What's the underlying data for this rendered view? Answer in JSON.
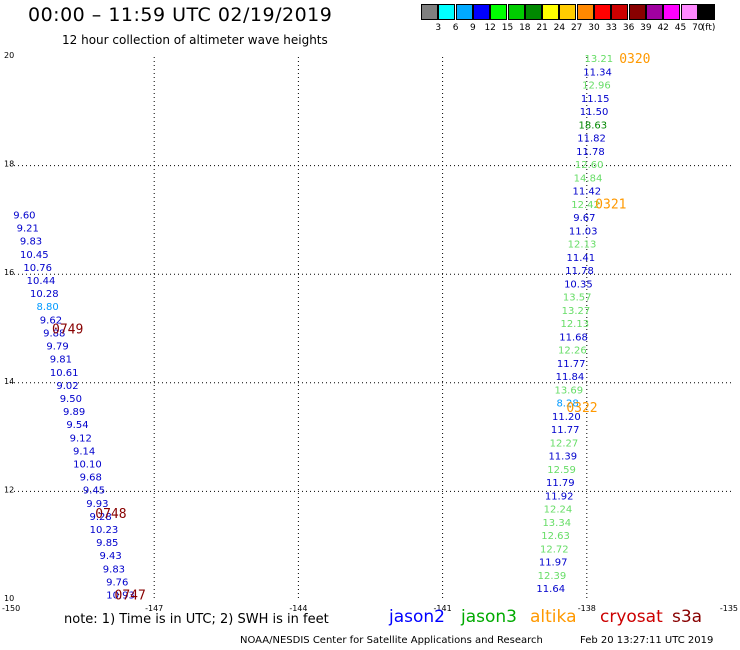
{
  "header": {
    "title": "00:00 – 11:59 UTC 02/19/2019",
    "subtitle": "12 hour collection of altimeter wave heights"
  },
  "legend": {
    "unit": "(ft)",
    "bins": [
      {
        "label": "3",
        "color": "#7f7f7f"
      },
      {
        "label": "6",
        "color": "#00ffff"
      },
      {
        "label": "9",
        "color": "#00aaff"
      },
      {
        "label": "12",
        "color": "#0000ff"
      },
      {
        "label": "15",
        "color": "#00ff00"
      },
      {
        "label": "18",
        "color": "#00cc00"
      },
      {
        "label": "21",
        "color": "#008800"
      },
      {
        "label": "24",
        "color": "#ffff00"
      },
      {
        "label": "27",
        "color": "#ffcc00"
      },
      {
        "label": "30",
        "color": "#ff8800"
      },
      {
        "label": "33",
        "color": "#ff0000"
      },
      {
        "label": "36",
        "color": "#cc0000"
      },
      {
        "label": "39",
        "color": "#880000"
      },
      {
        "label": "42",
        "color": "#a000a0"
      },
      {
        "label": "45",
        "color": "#ff00ff"
      },
      {
        "label": "70",
        "color": "#ff88ff"
      },
      {
        "label": "",
        "color": "#000000"
      }
    ]
  },
  "map": {
    "lon_range": [
      -150,
      -135
    ],
    "lat_range": [
      10,
      20
    ],
    "lon_ticks": [
      "-150",
      "-147",
      "-144",
      "-141",
      "-138",
      "-135"
    ],
    "lat_ticks": [
      "10",
      "12",
      "14",
      "16",
      "18",
      "20"
    ],
    "track_labels": [
      {
        "text": "0320",
        "lon": -137.0,
        "lat": 19.98,
        "color": "#ff9900"
      },
      {
        "text": "0321",
        "lon": -137.5,
        "lat": 17.3,
        "color": "#ff9900"
      },
      {
        "text": "0322",
        "lon": -138.1,
        "lat": 13.55,
        "color": "#ff9900"
      },
      {
        "text": "0749",
        "lon": -148.8,
        "lat": 15.0,
        "color": "#880000"
      },
      {
        "text": "0748",
        "lon": -147.9,
        "lat": 11.6,
        "color": "#880000"
      },
      {
        "text": "0747",
        "lon": -147.5,
        "lat": 10.1,
        "color": "#880000"
      }
    ],
    "tracks": [
      {
        "name": "east-track",
        "start": {
          "lon": -137.75,
          "lat": 19.98
        },
        "end": {
          "lon": -138.75,
          "lat": 10.22
        },
        "values": [
          "13.21",
          "11.34",
          "12.96",
          "11.15",
          "11.50",
          "18.63",
          "11.82",
          "11.78",
          "12.60",
          "14.84",
          "11.42",
          "12.42",
          "9.67",
          "11.03",
          "12.13",
          "11.41",
          "11.78",
          "10.35",
          "13.57",
          "13.27",
          "12.13",
          "11.68",
          "12.26",
          "11.77",
          "11.84",
          "13.69",
          "8.28",
          "11.20",
          "11.77",
          "12.27",
          "11.39",
          "12.59",
          "11.79",
          "11.92",
          "12.24",
          "13.34",
          "12.63",
          "12.72",
          "11.97",
          "12.39",
          "11.64"
        ],
        "colors": [
          "#66dd66",
          "#0000cc",
          "#66dd66",
          "#0000cc",
          "#0000cc",
          "#008800",
          "#0000cc",
          "#0000cc",
          "#66dd66",
          "#66dd66",
          "#0000cc",
          "#66dd66",
          "#0000cc",
          "#0000cc",
          "#66dd66",
          "#0000cc",
          "#0000cc",
          "#0000cc",
          "#66dd66",
          "#66dd66",
          "#66dd66",
          "#0000cc",
          "#66dd66",
          "#0000cc",
          "#0000cc",
          "#66dd66",
          "#0099ff",
          "#0000cc",
          "#0000cc",
          "#66dd66",
          "#0000cc",
          "#66dd66",
          "#0000cc",
          "#0000cc",
          "#66dd66",
          "#66dd66",
          "#66dd66",
          "#66dd66",
          "#0000cc",
          "#66dd66",
          "#0000cc"
        ]
      },
      {
        "name": "west-track",
        "start": {
          "lon": -149.7,
          "lat": 17.1
        },
        "end": {
          "lon": -147.7,
          "lat": 10.1
        },
        "values": [
          "9.60",
          "9.21",
          "9.83",
          "10.45",
          "10.76",
          "10.44",
          "10.28",
          "8.80",
          "9.62",
          "9.88",
          "9.79",
          "9.81",
          "10.61",
          "9.02",
          "9.50",
          "9.89",
          "9.54",
          "9.12",
          "9.14",
          "10.10",
          "9.68",
          "9.45",
          "9.93",
          "9.28",
          "10.23",
          "9.85",
          "9.43",
          "9.83",
          "9.76",
          "10.93"
        ],
        "colors": [
          "#0000cc",
          "#0000cc",
          "#0000cc",
          "#0000cc",
          "#0000cc",
          "#0000cc",
          "#0000cc",
          "#0099ff",
          "#0000cc",
          "#0000cc",
          "#0000cc",
          "#0000cc",
          "#0000cc",
          "#0000cc",
          "#0000cc",
          "#0000cc",
          "#0000cc",
          "#0000cc",
          "#0000cc",
          "#0000cc",
          "#0000cc",
          "#0000cc",
          "#0000cc",
          "#0000cc",
          "#0000cc",
          "#0000cc",
          "#0000cc",
          "#0000cc",
          "#0000cc",
          "#0000cc"
        ]
      }
    ]
  },
  "footer": {
    "note": "note: 1) Time is in UTC; 2) SWH is in feet",
    "satellites": [
      {
        "name": "jason2",
        "color": "#0000ff"
      },
      {
        "name": "jason3",
        "color": "#00aa00"
      },
      {
        "name": "altika",
        "color": "#ff9900"
      },
      {
        "name": "cryosat",
        "color": "#cc0000"
      },
      {
        "name": "s3a",
        "color": "#880000"
      }
    ],
    "credit": "NOAA/NESDIS Center for Satellite Applications and Research",
    "timestamp": "Feb 20 13:27:11 UTC 2019"
  }
}
